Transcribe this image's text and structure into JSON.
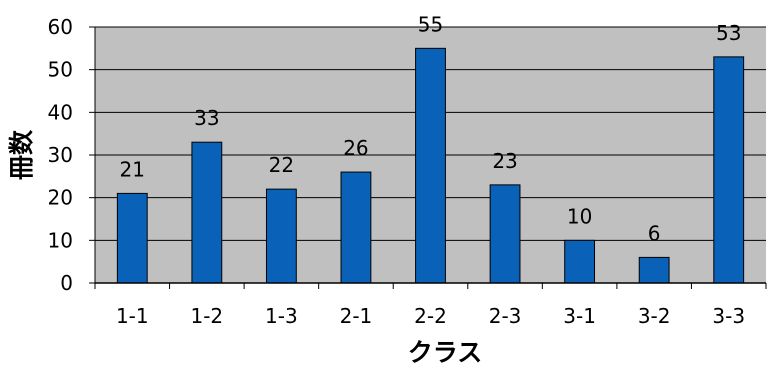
{
  "chart_data": {
    "type": "bar",
    "title": "",
    "xlabel": "クラス",
    "ylabel": "冊数",
    "categories": [
      "1-1",
      "1-2",
      "1-3",
      "2-1",
      "2-2",
      "2-3",
      "3-1",
      "3-2",
      "3-3"
    ],
    "series": [
      {
        "values": [
          21,
          33,
          22,
          26,
          55,
          23,
          10,
          6,
          53
        ]
      }
    ],
    "ylim": [
      0,
      60
    ],
    "yticks": [
      0,
      10,
      20,
      30,
      40,
      50,
      60
    ],
    "grid": true,
    "legend": "none",
    "data_labels": true
  },
  "colors": {
    "bar_fill": "#0A62B8",
    "bar_stroke": "#000000",
    "plot_background": "#C0C0C0",
    "gridline": "#000000",
    "axis": "#000000"
  }
}
